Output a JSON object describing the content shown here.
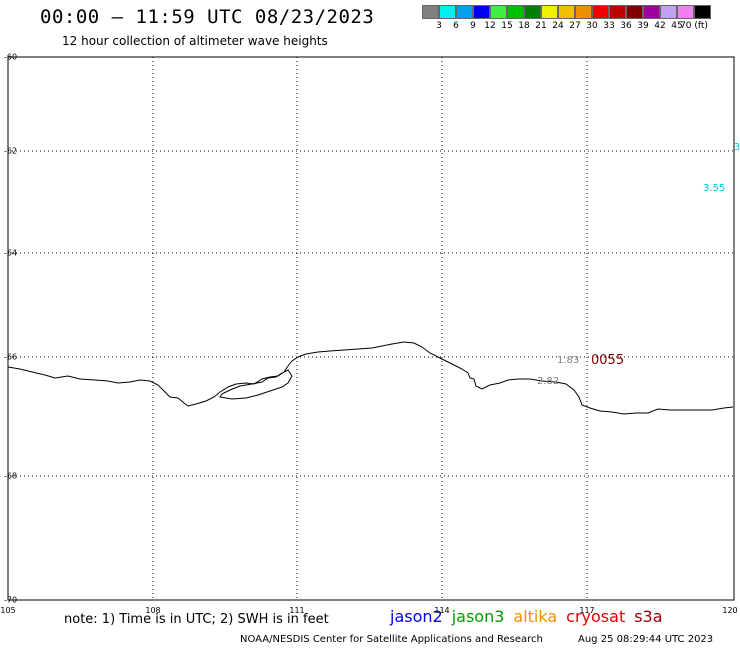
{
  "header": {
    "title": "00:00 – 11:59 UTC 08/23/2023",
    "subtitle": "12 hour collection of altimeter wave heights"
  },
  "color_scale": {
    "colors": [
      "#808080",
      "#00f0f0",
      "#00a0f0",
      "#0000f0",
      "#40f040",
      "#00c000",
      "#008000",
      "#f0f000",
      "#f0c000",
      "#f09000",
      "#f00000",
      "#c00000",
      "#800000",
      "#a000a0",
      "#c0a0f0",
      "#f080f0",
      "#000000"
    ],
    "labels": [
      "3",
      "6",
      "9",
      "12",
      "15",
      "18",
      "21",
      "24",
      "27",
      "30",
      "33",
      "36",
      "39",
      "42",
      "45",
      "70 (ft)"
    ]
  },
  "map": {
    "lat_labels": [
      "-60",
      "-62",
      "-64",
      "-66",
      "-68",
      "-70"
    ],
    "lon_labels": [
      "105",
      "108",
      "111",
      "114",
      "117",
      "120"
    ],
    "lat_range": [
      -70,
      -60
    ],
    "lon_range": [
      105,
      120
    ],
    "grid": true
  },
  "points": [
    {
      "text": "3.55",
      "color": "#00c8e0"
    },
    {
      "text": "3",
      "color": "#00c8e0"
    },
    {
      "text": "1.83",
      "color": "#808080"
    },
    {
      "text": "2.82",
      "color": "#808080"
    },
    {
      "text": "0055",
      "color": "#800000"
    }
  ],
  "footer": {
    "note": "note: 1) Time is in UTC; 2) SWH is in feet",
    "satellites": [
      {
        "name": "jason2",
        "color": "#0000e0"
      },
      {
        "name": "jason3",
        "color": "#00a000"
      },
      {
        "name": "altika",
        "color": "#f09000"
      },
      {
        "name": "cryosat",
        "color": "#e00000"
      },
      {
        "name": "s3a",
        "color": "#a00000"
      }
    ],
    "credit": "NOAA/NESDIS Center for Satellite Applications and Research",
    "timestamp": "Aug 25 08:29:44 UTC 2023"
  }
}
